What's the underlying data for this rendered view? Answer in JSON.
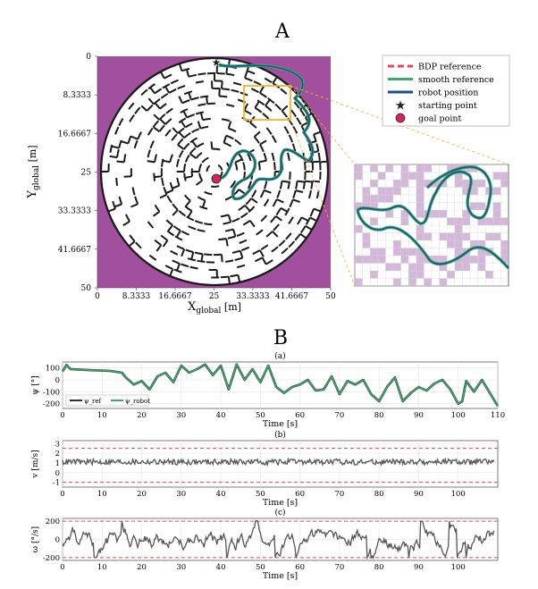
{
  "panel_a": {
    "label": "A",
    "x_ticks": [
      "0",
      "8.3333",
      "16.6667",
      "25",
      "33.3333",
      "41.6667",
      "50"
    ],
    "y_ticks": [
      "0",
      "8.3333",
      "16.6667",
      "25",
      "33.3333",
      "41.6667",
      "50"
    ],
    "xlabel_main": "X",
    "xlabel_sub": "global",
    "xlabel_unit": " [m]",
    "ylabel_main": "Y",
    "ylabel_sub": "global",
    "ylabel_unit": " [m]",
    "legend": [
      {
        "label": "BDP reference",
        "color": "#e5484d",
        "style": "dashed"
      },
      {
        "label": "smooth reference",
        "color": "#3aaa6a",
        "style": "solid"
      },
      {
        "label": "robot position",
        "color": "#1f4e8c",
        "style": "solid"
      },
      {
        "label": "starting point",
        "color": "#222222",
        "style": "star"
      },
      {
        "label": "goal point",
        "color": "#d6245a",
        "style": "dot"
      }
    ],
    "colors": {
      "background": "#a0509c",
      "maze_wall": "#1a1a1a",
      "maze_floor": "#ffffff",
      "zoom_box": "#f0b429",
      "path_green": "#3aaa6a",
      "path_blue": "#1f4e8c"
    }
  },
  "panel_b": {
    "label": "B",
    "subplots": [
      {
        "title": "(a)",
        "ylabel": "ψ [°]",
        "xlabel": "Time [s]",
        "yticks": [
          "100",
          "0",
          "-100",
          "-200"
        ],
        "xticks": [
          "0",
          "10",
          "20",
          "30",
          "40",
          "50",
          "60",
          "70",
          "80",
          "90",
          "100",
          "110"
        ],
        "legend": [
          "ψ_ref",
          "ψ_robot"
        ]
      },
      {
        "title": "(b)",
        "ylabel": "v [m/s]",
        "xlabel": "Time [s]",
        "yticks": [
          "3",
          "2",
          "1",
          "0",
          "-1"
        ],
        "xticks": [
          "0",
          "10",
          "20",
          "30",
          "40",
          "50",
          "60",
          "70",
          "80",
          "90",
          "100"
        ]
      },
      {
        "title": "(c)",
        "ylabel": "ω [°/s]",
        "xlabel": "Time [s]",
        "yticks": [
          "200",
          "0",
          "-200"
        ],
        "xticks": [
          "0",
          "10",
          "20",
          "30",
          "40",
          "50",
          "60",
          "70",
          "80",
          "90",
          "100"
        ]
      }
    ]
  },
  "chart_data": [
    {
      "type": "line",
      "title": "(a)",
      "xlabel": "Time [s]",
      "ylabel": "ψ [°]",
      "xlim": [
        0,
        110
      ],
      "ylim": [
        -240,
        150
      ],
      "x": [
        0,
        1,
        2,
        5,
        8,
        12,
        15,
        16,
        17,
        18,
        20,
        22,
        24,
        26,
        28,
        30,
        32,
        34,
        36,
        38,
        40,
        42,
        44,
        46,
        48,
        50,
        52,
        54,
        56,
        58,
        60,
        62,
        64,
        66,
        68,
        70,
        72,
        74,
        76,
        78,
        80,
        82,
        84,
        86,
        88,
        90,
        92,
        94,
        96,
        98,
        100,
        101,
        102,
        104,
        106,
        108,
        110
      ],
      "series": [
        {
          "name": "ψ_ref",
          "color": "#333333",
          "values": [
            70,
            125,
            90,
            85,
            80,
            75,
            60,
            20,
            -10,
            -40,
            -10,
            -80,
            30,
            60,
            -20,
            120,
            60,
            90,
            130,
            40,
            120,
            -80,
            130,
            0,
            90,
            -20,
            120,
            -60,
            -110,
            -60,
            -40,
            0,
            -90,
            -80,
            30,
            -120,
            -10,
            -40,
            0,
            -120,
            -180,
            -60,
            20,
            -180,
            -110,
            -60,
            -90,
            -30,
            0,
            -80,
            -200,
            -180,
            -10,
            -100,
            0,
            -110,
            -220
          ]
        },
        {
          "name": "ψ_robot",
          "color": "#3aaa6a",
          "values": [
            70,
            125,
            90,
            85,
            80,
            75,
            60,
            20,
            -10,
            -40,
            -10,
            -80,
            30,
            60,
            -20,
            120,
            60,
            90,
            130,
            40,
            120,
            -80,
            130,
            0,
            90,
            -20,
            120,
            -60,
            -110,
            -60,
            -40,
            0,
            -90,
            -80,
            30,
            -120,
            -10,
            -40,
            0,
            -120,
            -180,
            -60,
            20,
            -180,
            -110,
            -60,
            -90,
            -30,
            0,
            -80,
            -200,
            -180,
            -10,
            -100,
            0,
            -110,
            -220
          ]
        }
      ]
    },
    {
      "type": "line",
      "title": "(b)",
      "xlabel": "Time [s]",
      "ylabel": "v [m/s]",
      "xlim": [
        0,
        110
      ],
      "ylim": [
        -1.5,
        3.3
      ],
      "reference_lines": [
        {
          "y": 2.5,
          "color": "#e5484d",
          "style": "dashed"
        },
        {
          "y": -1.0,
          "color": "#e5484d",
          "style": "dashed"
        }
      ],
      "series": [
        {
          "name": "v",
          "color": "#555555",
          "mean": 1.1,
          "amplitude": 0.3
        }
      ]
    },
    {
      "type": "line",
      "title": "(c)",
      "xlabel": "Time [s]",
      "ylabel": "ω [°/s]",
      "xlim": [
        0,
        110
      ],
      "ylim": [
        -230,
        230
      ],
      "reference_lines": [
        {
          "y": 200,
          "color": "#e5484d",
          "style": "dashed"
        },
        {
          "y": -200,
          "color": "#e5484d",
          "style": "dashed"
        }
      ],
      "series": [
        {
          "name": "ω",
          "color": "#555555",
          "mean": 0,
          "amplitude": 120
        }
      ]
    }
  ]
}
